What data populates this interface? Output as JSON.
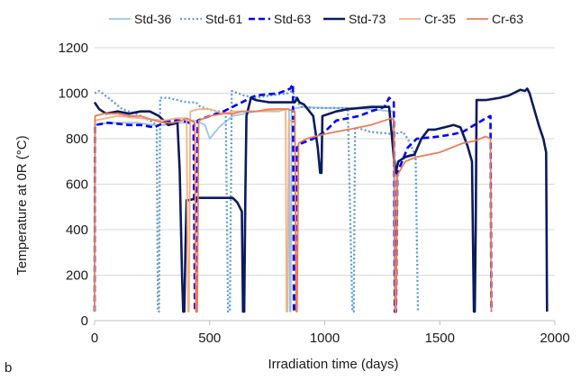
{
  "chart_data": {
    "type": "line",
    "panel_label": "b",
    "xlabel": "Irradiation time (days)",
    "ylabel": "Temperature at 0R (°C)",
    "xlim": [
      0,
      2000
    ],
    "ylim": [
      0,
      1200
    ],
    "x_ticks": [
      "0",
      "500",
      "1000",
      "1500",
      "2000"
    ],
    "y_ticks": [
      "0",
      "200",
      "400",
      "600",
      "800",
      "1000",
      "1200"
    ],
    "grid": "horizontal",
    "legend_position": "top",
    "series": [
      {
        "name": "Std-36",
        "color": "#9dc3e6",
        "dash": "solid",
        "points": [
          [
            0,
            40
          ],
          [
            2,
            860
          ],
          [
            60,
            870
          ],
          [
            180,
            870
          ],
          [
            260,
            860
          ],
          [
            300,
            860
          ],
          [
            360,
            870
          ],
          [
            400,
            870
          ],
          [
            410,
            880
          ],
          [
            440,
            880
          ],
          [
            480,
            860
          ],
          [
            500,
            800
          ],
          [
            540,
            850
          ],
          [
            600,
            900
          ],
          [
            700,
            920
          ],
          [
            800,
            930
          ],
          [
            845,
            930
          ],
          [
            848,
            40
          ],
          [
            852,
            40
          ],
          [
            856,
            930
          ],
          [
            900,
            940
          ],
          [
            1000,
            935
          ],
          [
            1100,
            935
          ],
          [
            1200,
            930
          ],
          [
            1290,
            920
          ],
          [
            1300,
            920
          ],
          [
            1304,
            40
          ],
          [
            1308,
            40
          ],
          [
            1312,
            700
          ],
          [
            1340,
            710
          ],
          [
            1360,
            720
          ],
          [
            1370,
            730
          ],
          [
            1380,
            730
          ]
        ]
      },
      {
        "name": "Std-61",
        "color": "#5b9bd5",
        "dash": "dot",
        "points": [
          [
            0,
            1000
          ],
          [
            20,
            1010
          ],
          [
            60,
            980
          ],
          [
            120,
            930
          ],
          [
            180,
            910
          ],
          [
            240,
            880
          ],
          [
            270,
            860
          ],
          [
            275,
            40
          ],
          [
            280,
            40
          ],
          [
            285,
            980
          ],
          [
            320,
            980
          ],
          [
            400,
            960
          ],
          [
            440,
            960
          ],
          [
            460,
            940
          ],
          [
            530,
            920
          ],
          [
            570,
            920
          ],
          [
            580,
            40
          ],
          [
            588,
            40
          ],
          [
            596,
            1010
          ],
          [
            650,
            990
          ],
          [
            700,
            980
          ],
          [
            760,
            990
          ],
          [
            840,
            1000
          ],
          [
            860,
            1010
          ],
          [
            880,
            960
          ],
          [
            900,
            940
          ],
          [
            950,
            935
          ],
          [
            1050,
            935
          ],
          [
            1100,
            935
          ],
          [
            1120,
            40
          ],
          [
            1126,
            40
          ],
          [
            1132,
            850
          ],
          [
            1200,
            830
          ],
          [
            1300,
            820
          ],
          [
            1340,
            830
          ],
          [
            1360,
            800
          ],
          [
            1380,
            760
          ],
          [
            1395,
            720
          ],
          [
            1405,
            40
          ]
        ]
      },
      {
        "name": "Std-63",
        "color": "#0000ff",
        "dash": "dash",
        "points": [
          [
            0,
            40
          ],
          [
            2,
            860
          ],
          [
            60,
            870
          ],
          [
            150,
            860
          ],
          [
            200,
            860
          ],
          [
            260,
            850
          ],
          [
            300,
            870
          ],
          [
            340,
            880
          ],
          [
            380,
            880
          ],
          [
            410,
            870
          ],
          [
            430,
            860
          ],
          [
            436,
            40
          ],
          [
            442,
            40
          ],
          [
            448,
            880
          ],
          [
            500,
            900
          ],
          [
            560,
            920
          ],
          [
            620,
            950
          ],
          [
            700,
            990
          ],
          [
            800,
            1000
          ],
          [
            850,
            1020
          ],
          [
            862,
            1040
          ],
          [
            866,
            40
          ],
          [
            872,
            40
          ],
          [
            878,
            760
          ],
          [
            900,
            780
          ],
          [
            950,
            800
          ],
          [
            1000,
            830
          ],
          [
            1050,
            880
          ],
          [
            1150,
            900
          ],
          [
            1200,
            920
          ],
          [
            1260,
            940
          ],
          [
            1280,
            980
          ],
          [
            1300,
            960
          ],
          [
            1304,
            40
          ],
          [
            1310,
            40
          ],
          [
            1316,
            650
          ],
          [
            1360,
            760
          ],
          [
            1400,
            800
          ],
          [
            1500,
            810
          ],
          [
            1560,
            820
          ],
          [
            1600,
            830
          ],
          [
            1650,
            860
          ],
          [
            1700,
            890
          ],
          [
            1720,
            900
          ],
          [
            1724,
            40
          ]
        ]
      },
      {
        "name": "Std-73",
        "color": "#0c1a5e",
        "dash": "solid",
        "points": [
          [
            0,
            960
          ],
          [
            20,
            930
          ],
          [
            50,
            910
          ],
          [
            100,
            920
          ],
          [
            150,
            910
          ],
          [
            200,
            920
          ],
          [
            240,
            920
          ],
          [
            280,
            900
          ],
          [
            300,
            880
          ],
          [
            320,
            860
          ],
          [
            360,
            870
          ],
          [
            370,
            660
          ],
          [
            380,
            200
          ],
          [
            385,
            40
          ],
          [
            390,
            40
          ],
          [
            395,
            320
          ],
          [
            400,
            530
          ],
          [
            410,
            530
          ],
          [
            450,
            540
          ],
          [
            520,
            540
          ],
          [
            560,
            540
          ],
          [
            600,
            540
          ],
          [
            620,
            520
          ],
          [
            640,
            480
          ],
          [
            645,
            40
          ],
          [
            650,
            40
          ],
          [
            655,
            560
          ],
          [
            660,
            900
          ],
          [
            680,
            980
          ],
          [
            700,
            970
          ],
          [
            760,
            960
          ],
          [
            840,
            960
          ],
          [
            870,
            960
          ],
          [
            880,
            980
          ],
          [
            890,
            960
          ],
          [
            910,
            950
          ],
          [
            950,
            900
          ],
          [
            970,
            760
          ],
          [
            980,
            650
          ],
          [
            986,
            650
          ],
          [
            990,
            900
          ],
          [
            1050,
            920
          ],
          [
            1100,
            930
          ],
          [
            1200,
            940
          ],
          [
            1280,
            940
          ],
          [
            1300,
            720
          ],
          [
            1308,
            650
          ],
          [
            1320,
            700
          ],
          [
            1350,
            720
          ],
          [
            1390,
            730
          ],
          [
            1420,
            800
          ],
          [
            1450,
            840
          ],
          [
            1480,
            840
          ],
          [
            1520,
            850
          ],
          [
            1560,
            860
          ],
          [
            1590,
            850
          ],
          [
            1620,
            770
          ],
          [
            1640,
            700
          ],
          [
            1648,
            40
          ],
          [
            1652,
            40
          ],
          [
            1656,
            400
          ],
          [
            1660,
            970
          ],
          [
            1700,
            970
          ],
          [
            1760,
            980
          ],
          [
            1800,
            990
          ],
          [
            1820,
            1000
          ],
          [
            1850,
            1015
          ],
          [
            1870,
            1010
          ],
          [
            1880,
            1020
          ],
          [
            1890,
            1000
          ],
          [
            1910,
            930
          ],
          [
            1930,
            860
          ],
          [
            1950,
            800
          ],
          [
            1962,
            740
          ],
          [
            1966,
            40
          ]
        ]
      },
      {
        "name": "Cr-35",
        "color": "#f4b183",
        "dash": "solid",
        "points": [
          [
            0,
            40
          ],
          [
            2,
            880
          ],
          [
            100,
            900
          ],
          [
            200,
            890
          ],
          [
            300,
            880
          ],
          [
            360,
            890
          ],
          [
            400,
            890
          ],
          [
            406,
            40
          ],
          [
            410,
            40
          ],
          [
            416,
            920
          ],
          [
            450,
            930
          ],
          [
            500,
            930
          ],
          [
            560,
            910
          ],
          [
            600,
            920
          ],
          [
            700,
            920
          ],
          [
            800,
            920
          ],
          [
            830,
            930
          ],
          [
            834,
            40
          ],
          [
            838,
            40
          ],
          [
            844,
            880
          ],
          [
            870,
            880
          ]
        ]
      },
      {
        "name": "Cr-63",
        "color": "#ed7d57",
        "dash": "solid",
        "points": [
          [
            0,
            40
          ],
          [
            2,
            900
          ],
          [
            40,
            910
          ],
          [
            100,
            910
          ],
          [
            150,
            900
          ],
          [
            200,
            900
          ],
          [
            260,
            880
          ],
          [
            300,
            870
          ],
          [
            340,
            870
          ],
          [
            380,
            880
          ],
          [
            400,
            890
          ],
          [
            420,
            880
          ],
          [
            436,
            870
          ],
          [
            440,
            40
          ],
          [
            446,
            40
          ],
          [
            452,
            880
          ],
          [
            500,
            900
          ],
          [
            560,
            910
          ],
          [
            600,
            910
          ],
          [
            640,
            920
          ],
          [
            700,
            920
          ],
          [
            760,
            930
          ],
          [
            840,
            930
          ],
          [
            870,
            920
          ],
          [
            876,
            40
          ],
          [
            880,
            40
          ],
          [
            886,
            780
          ],
          [
            920,
            800
          ],
          [
            960,
            810
          ],
          [
            1000,
            820
          ],
          [
            1050,
            830
          ],
          [
            1100,
            840
          ],
          [
            1150,
            850
          ],
          [
            1200,
            860
          ],
          [
            1260,
            880
          ],
          [
            1290,
            890
          ],
          [
            1300,
            880
          ],
          [
            1306,
            40
          ],
          [
            1310,
            40
          ],
          [
            1316,
            640
          ],
          [
            1350,
            700
          ],
          [
            1400,
            720
          ],
          [
            1450,
            730
          ],
          [
            1500,
            740
          ],
          [
            1550,
            760
          ],
          [
            1600,
            780
          ],
          [
            1650,
            790
          ],
          [
            1700,
            810
          ],
          [
            1720,
            800
          ],
          [
            1724,
            40
          ]
        ]
      }
    ]
  }
}
